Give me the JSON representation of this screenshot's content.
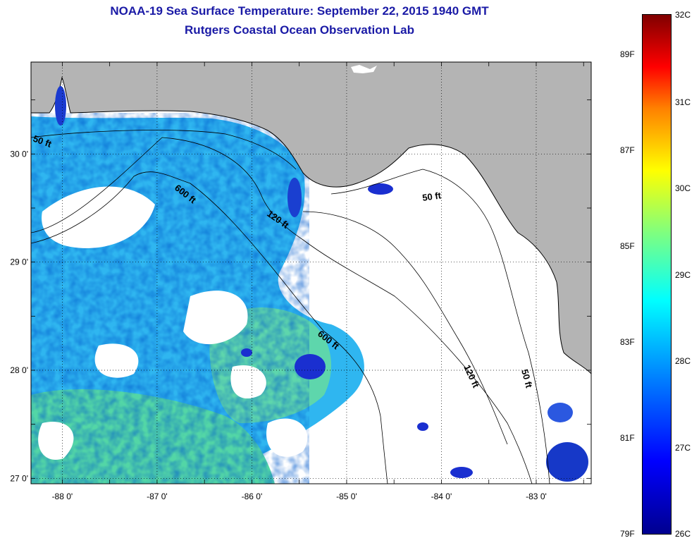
{
  "title": "NOAA-19 Sea Surface Temperature:  September 22, 2015 1940 GMT",
  "subtitle": "Rutgers Coastal Ocean Observation Lab",
  "map": {
    "lon_range": [
      -88.33,
      -82.42
    ],
    "lat_range": [
      26.95,
      30.85
    ],
    "lon_ticks": [
      {
        "value": -88,
        "label": "-88 0'"
      },
      {
        "value": -87,
        "label": "-87 0'"
      },
      {
        "value": -86,
        "label": "-86 0'"
      },
      {
        "value": -85,
        "label": "-85 0'"
      },
      {
        "value": -84,
        "label": "-84 0'"
      },
      {
        "value": -83,
        "label": "-83 0'"
      }
    ],
    "lat_ticks": [
      {
        "value": 30,
        "label": "30 0'"
      },
      {
        "value": 29,
        "label": "29 0'"
      },
      {
        "value": 28,
        "label": "28 0'"
      },
      {
        "value": 27,
        "label": "27 0'"
      }
    ],
    "contour_labels": [
      "50 ft",
      "600 ft",
      "120 ft",
      "50 ft",
      "600 ft",
      "120 ft",
      "50 ft"
    ],
    "colors": {
      "land": "#b4b4b4",
      "cloud": "#ffffff",
      "grid": "#000000"
    }
  },
  "colorbar": {
    "celsius": [
      "32C",
      "31C",
      "30C",
      "29C",
      "28C",
      "27C",
      "26C"
    ],
    "fahrenheit": [
      "89F",
      "87F",
      "85F",
      "83F",
      "81F",
      "79F"
    ]
  }
}
